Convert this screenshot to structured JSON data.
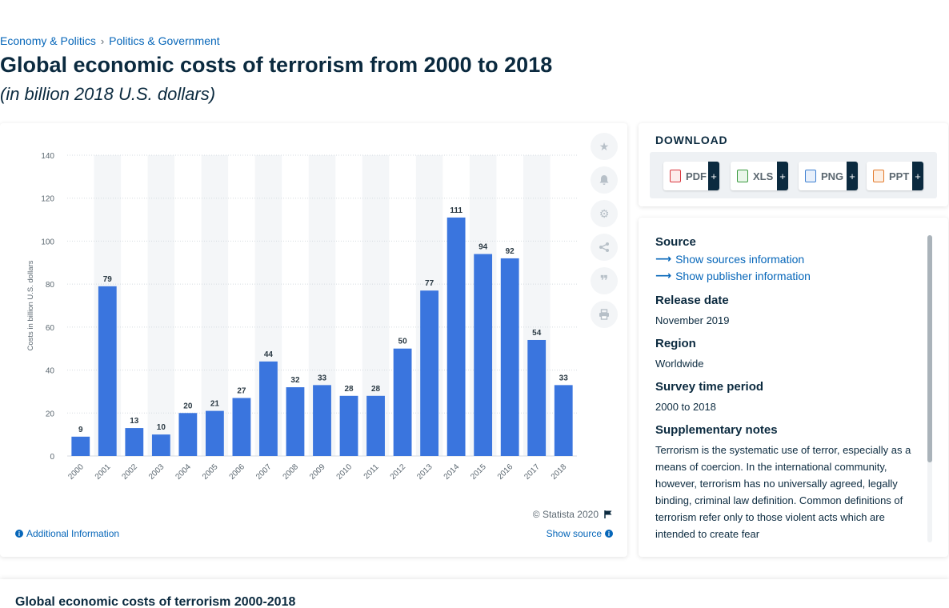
{
  "breadcrumb": {
    "items": [
      "Economy & Politics",
      "Politics & Government"
    ],
    "separator": "›"
  },
  "page": {
    "title": "Global economic costs of terrorism from 2000 to 2018",
    "subtitle": "(in billion 2018 U.S. dollars)"
  },
  "chart_data": {
    "type": "bar",
    "categories": [
      "2000",
      "2001",
      "2002",
      "2003",
      "2004",
      "2005",
      "2006",
      "2007",
      "2008",
      "2009",
      "2010",
      "2011",
      "2012",
      "2013",
      "2014",
      "2015",
      "2016",
      "2017",
      "2018"
    ],
    "values": [
      9,
      79,
      13,
      10,
      20,
      21,
      27,
      44,
      32,
      33,
      28,
      28,
      50,
      77,
      111,
      94,
      92,
      54,
      33
    ],
    "ylabel": "Costs in billion U.S. dollars",
    "xlabel": "",
    "ylim": [
      0,
      140
    ],
    "yticks": [
      0,
      20,
      40,
      60,
      80,
      100,
      120,
      140
    ],
    "grid": true,
    "bar_color": "#3a75de",
    "stripe_color": "#f4f6f8"
  },
  "chart_footer": {
    "copyright": "© Statista 2020",
    "additional_info": "Additional Information",
    "show_source": "Show source"
  },
  "tools": [
    "star-icon",
    "bell-icon",
    "gear-icon",
    "share-icon",
    "quote-icon",
    "print-icon"
  ],
  "download": {
    "title": "DOWNLOAD",
    "buttons": [
      {
        "label": "PDF",
        "color": "#d9363e"
      },
      {
        "label": "XLS",
        "color": "#3a9a3f"
      },
      {
        "label": "PNG",
        "color": "#3d7fd1"
      },
      {
        "label": "PPT",
        "color": "#e37b2c"
      }
    ],
    "plus": "+"
  },
  "info": {
    "source_heading": "Source",
    "show_sources": "Show sources information",
    "show_publisher": "Show publisher information",
    "release_heading": "Release date",
    "release_value": "November 2019",
    "region_heading": "Region",
    "region_value": "Worldwide",
    "survey_heading": "Survey time period",
    "survey_value": "2000 to 2018",
    "notes_heading": "Supplementary notes",
    "notes_value": "Terrorism is the systematic use of terror, especially as a means of coercion. In the international community, however, terrorism has no universally agreed, legally binding, criminal law definition. Common definitions of terrorism refer only to those violent acts which are intended to create fear"
  },
  "bottom": {
    "title": "Global economic costs of terrorism 2000-2018"
  },
  "colors": {
    "accent": "#0666b9",
    "dark": "#0b2a3f"
  }
}
